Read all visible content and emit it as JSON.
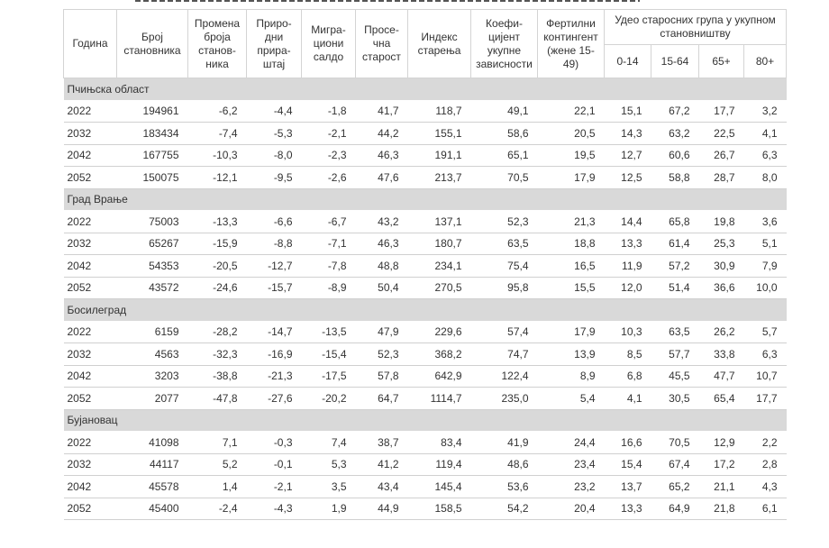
{
  "headers": {
    "year": "Година",
    "population": "Број становника",
    "pop_change": "Промена броја станов-ника",
    "natural_increase": "Приро-дни прира-штај",
    "migration": "Мигра-циони салдо",
    "avg_age": "Просе-чна старост",
    "aging_index": "Индекс старења",
    "dependency": "Коефи-цијент укупне зависности",
    "fertile": "Фертилни контингент (жене 15-49)",
    "age_share_group": "Удео старосних група у укупном становништву",
    "age_groups": [
      "0-14",
      "15-64",
      "65+",
      "80+"
    ]
  },
  "sections": [
    {
      "name": "Пчињска област",
      "rows": [
        [
          "2022",
          "194961",
          "-6,2",
          "-4,4",
          "-1,8",
          "41,7",
          "118,7",
          "49,1",
          "22,1",
          "15,1",
          "67,2",
          "17,7",
          "3,2"
        ],
        [
          "2032",
          "183434",
          "-7,4",
          "-5,3",
          "-2,1",
          "44,2",
          "155,1",
          "58,6",
          "20,5",
          "14,3",
          "63,2",
          "22,5",
          "4,1"
        ],
        [
          "2042",
          "167755",
          "-10,3",
          "-8,0",
          "-2,3",
          "46,3",
          "191,1",
          "65,1",
          "19,5",
          "12,7",
          "60,6",
          "26,7",
          "6,3"
        ],
        [
          "2052",
          "150075",
          "-12,1",
          "-9,5",
          "-2,6",
          "47,6",
          "213,7",
          "70,5",
          "17,9",
          "12,5",
          "58,8",
          "28,7",
          "8,0"
        ]
      ]
    },
    {
      "name": "Град Врање",
      "rows": [
        [
          "2022",
          "75003",
          "-13,3",
          "-6,6",
          "-6,7",
          "43,2",
          "137,1",
          "52,3",
          "21,3",
          "14,4",
          "65,8",
          "19,8",
          "3,6"
        ],
        [
          "2032",
          "65267",
          "-15,9",
          "-8,8",
          "-7,1",
          "46,3",
          "180,7",
          "63,5",
          "18,8",
          "13,3",
          "61,4",
          "25,3",
          "5,1"
        ],
        [
          "2042",
          "54353",
          "-20,5",
          "-12,7",
          "-7,8",
          "48,8",
          "234,1",
          "75,4",
          "16,5",
          "11,9",
          "57,2",
          "30,9",
          "7,9"
        ],
        [
          "2052",
          "43572",
          "-24,6",
          "-15,7",
          "-8,9",
          "50,4",
          "270,5",
          "95,8",
          "15,5",
          "12,0",
          "51,4",
          "36,6",
          "10,0"
        ]
      ]
    },
    {
      "name": "Босилеград",
      "rows": [
        [
          "2022",
          "6159",
          "-28,2",
          "-14,7",
          "-13,5",
          "47,9",
          "229,6",
          "57,4",
          "17,9",
          "10,3",
          "63,5",
          "26,2",
          "5,7"
        ],
        [
          "2032",
          "4563",
          "-32,3",
          "-16,9",
          "-15,4",
          "52,3",
          "368,2",
          "74,7",
          "13,9",
          "8,5",
          "57,7",
          "33,8",
          "6,3"
        ],
        [
          "2042",
          "3203",
          "-38,8",
          "-21,3",
          "-17,5",
          "57,8",
          "642,9",
          "122,4",
          "8,9",
          "6,8",
          "45,5",
          "47,7",
          "10,7"
        ],
        [
          "2052",
          "2077",
          "-47,8",
          "-27,6",
          "-20,2",
          "64,7",
          "1114,7",
          "235,0",
          "5,4",
          "4,1",
          "30,5",
          "65,4",
          "17,7"
        ]
      ]
    },
    {
      "name": "Бујановац",
      "rows": [
        [
          "2022",
          "41098",
          "7,1",
          "-0,3",
          "7,4",
          "38,7",
          "83,4",
          "41,9",
          "24,4",
          "16,6",
          "70,5",
          "12,9",
          "2,2"
        ],
        [
          "2032",
          "44117",
          "5,2",
          "-0,1",
          "5,3",
          "41,2",
          "119,4",
          "48,6",
          "23,4",
          "15,4",
          "67,4",
          "17,2",
          "2,8"
        ],
        [
          "2042",
          "45578",
          "1,4",
          "-2,1",
          "3,5",
          "43,4",
          "145,4",
          "53,6",
          "23,2",
          "13,7",
          "65,2",
          "21,1",
          "4,3"
        ],
        [
          "2052",
          "45400",
          "-2,4",
          "-4,3",
          "1,9",
          "44,9",
          "158,5",
          "54,2",
          "20,4",
          "13,3",
          "64,9",
          "21,8",
          "6,1"
        ]
      ]
    }
  ]
}
